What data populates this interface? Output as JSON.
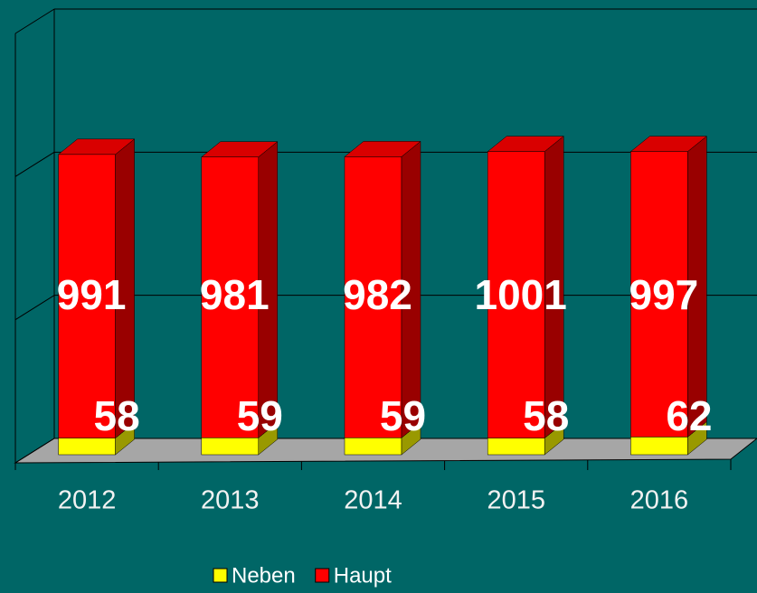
{
  "chart_data": {
    "type": "bar",
    "stacked": true,
    "categories": [
      "2012",
      "2013",
      "2014",
      "2015",
      "2016"
    ],
    "series": [
      {
        "name": "Neben",
        "color": "#ffff00",
        "values": [
          58,
          59,
          59,
          58,
          62
        ]
      },
      {
        "name": "Haupt",
        "color": "#ff0000",
        "values": [
          991,
          981,
          982,
          1001,
          997
        ]
      }
    ],
    "ylim": [
      0,
      1500
    ],
    "yticks": [
      0,
      500,
      1000,
      1500
    ],
    "grid": true,
    "legend": "bottom"
  }
}
